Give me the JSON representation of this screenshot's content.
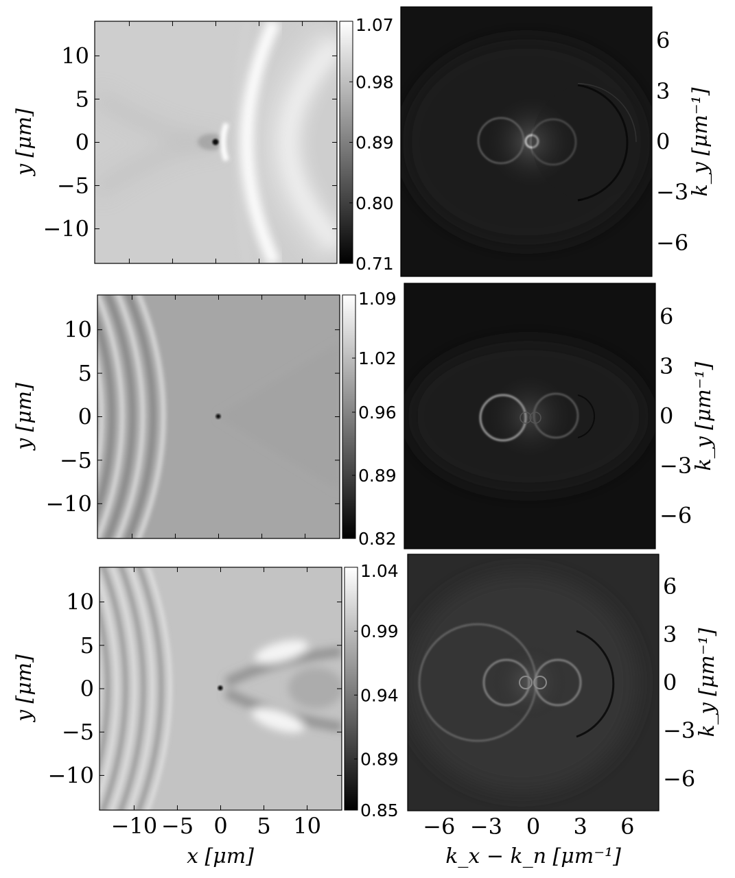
{
  "chart_data": [
    {
      "type": "heatmap",
      "panel": "real-space",
      "row": 1,
      "ylabel": "y [μm]",
      "xlabel": "",
      "xlim": [
        -14,
        14
      ],
      "ylim": [
        -14,
        14
      ],
      "y_ticks": [
        {
          "v": 10,
          "t": "10"
        },
        {
          "v": 5,
          "t": "5"
        },
        {
          "v": 0,
          "t": "0"
        },
        {
          "v": -5,
          "t": "−5"
        },
        {
          "v": -10,
          "t": "−10"
        }
      ],
      "x_ticks": [],
      "colorbar": {
        "min": 0.71,
        "max": 1.07,
        "ticks": [
          {
            "v": 1.07,
            "t": "1.07"
          },
          {
            "v": 0.98,
            "t": "0.98"
          },
          {
            "v": 0.89,
            "t": "0.89"
          },
          {
            "v": 0.8,
            "t": "0.80"
          },
          {
            "v": 0.71,
            "t": "0.71"
          }
        ]
      },
      "pattern": "smooth-parabolic"
    },
    {
      "type": "heatmap",
      "panel": "momentum-space",
      "row": 1,
      "ylabel": "k_y [μm⁻¹]",
      "xlabel": "",
      "xlim": [
        -8,
        8
      ],
      "ylim": [
        -8,
        8
      ],
      "y_ticks": [
        {
          "v": 6,
          "t": "6"
        },
        {
          "v": 3,
          "t": "3"
        },
        {
          "v": 0,
          "t": "0"
        },
        {
          "v": -3,
          "t": "−3"
        },
        {
          "v": -6,
          "t": "−6"
        }
      ],
      "x_ticks": [],
      "features": [
        "two-circles",
        "center-ring",
        "large-dark-arc"
      ]
    },
    {
      "type": "heatmap",
      "panel": "real-space",
      "row": 2,
      "ylabel": "y [μm]",
      "xlabel": "",
      "xlim": [
        -14,
        14
      ],
      "ylim": [
        -14,
        14
      ],
      "y_ticks": [
        {
          "v": 10,
          "t": "10"
        },
        {
          "v": 5,
          "t": "5"
        },
        {
          "v": 0,
          "t": "0"
        },
        {
          "v": -5,
          "t": "−5"
        },
        {
          "v": -10,
          "t": "−10"
        }
      ],
      "x_ticks": [],
      "colorbar": {
        "min": 0.82,
        "max": 1.09,
        "ticks": [
          {
            "v": 1.09,
            "t": "1.09"
          },
          {
            "v": 1.02,
            "t": "1.02"
          },
          {
            "v": 0.96,
            "t": "0.96"
          },
          {
            "v": 0.89,
            "t": "0.89"
          },
          {
            "v": 0.82,
            "t": "0.82"
          }
        ]
      },
      "pattern": "fringes-upstream"
    },
    {
      "type": "heatmap",
      "panel": "momentum-space",
      "row": 2,
      "ylabel": "k_y [μm⁻¹]",
      "xlabel": "",
      "xlim": [
        -8,
        8
      ],
      "ylim": [
        -8,
        8
      ],
      "y_ticks": [
        {
          "v": 6,
          "t": "6"
        },
        {
          "v": 3,
          "t": "3"
        },
        {
          "v": 0,
          "t": "0"
        },
        {
          "v": -3,
          "t": "−3"
        },
        {
          "v": -6,
          "t": "−6"
        }
      ],
      "x_ticks": [],
      "features": [
        "two-circles",
        "small-rings",
        "faint-halo"
      ]
    },
    {
      "type": "heatmap",
      "panel": "real-space",
      "row": 3,
      "ylabel": "y [μm]",
      "xlabel": "x [μm]",
      "xlim": [
        -14,
        14
      ],
      "ylim": [
        -14,
        14
      ],
      "y_ticks": [
        {
          "v": 10,
          "t": "10"
        },
        {
          "v": 5,
          "t": "5"
        },
        {
          "v": 0,
          "t": "0"
        },
        {
          "v": -5,
          "t": "−5"
        },
        {
          "v": -10,
          "t": "−10"
        }
      ],
      "x_ticks": [
        {
          "v": -10,
          "t": "−10"
        },
        {
          "v": -5,
          "t": "−5"
        },
        {
          "v": 0,
          "t": "0"
        },
        {
          "v": 5,
          "t": "5"
        },
        {
          "v": 10,
          "t": "10"
        }
      ],
      "colorbar": {
        "min": 0.85,
        "max": 1.04,
        "ticks": [
          {
            "v": 1.04,
            "t": "1.04"
          },
          {
            "v": 0.99,
            "t": "0.99"
          },
          {
            "v": 0.94,
            "t": "0.94"
          },
          {
            "v": 0.89,
            "t": "0.89"
          },
          {
            "v": 0.85,
            "t": "0.85"
          }
        ]
      },
      "pattern": "fringes-and-wake"
    },
    {
      "type": "heatmap",
      "panel": "momentum-space",
      "row": 3,
      "ylabel": "k_y [μm⁻¹]",
      "xlabel": "k_x − k_n [μm⁻¹]",
      "xlim": [
        -8,
        8
      ],
      "ylim": [
        -8,
        8
      ],
      "y_ticks": [
        {
          "v": 6,
          "t": "6"
        },
        {
          "v": 3,
          "t": "3"
        },
        {
          "v": 0,
          "t": "0"
        },
        {
          "v": -3,
          "t": "−3"
        },
        {
          "v": -6,
          "t": "−6"
        }
      ],
      "x_ticks": [
        {
          "v": -6,
          "t": "−6"
        },
        {
          "v": -3,
          "t": "−3"
        },
        {
          "v": 0,
          "t": "0"
        },
        {
          "v": 3,
          "t": "3"
        },
        {
          "v": 6,
          "t": "6"
        }
      ],
      "features": [
        "two-circles",
        "small-rings",
        "large-bright-circle",
        "large-dark-arc"
      ]
    }
  ]
}
